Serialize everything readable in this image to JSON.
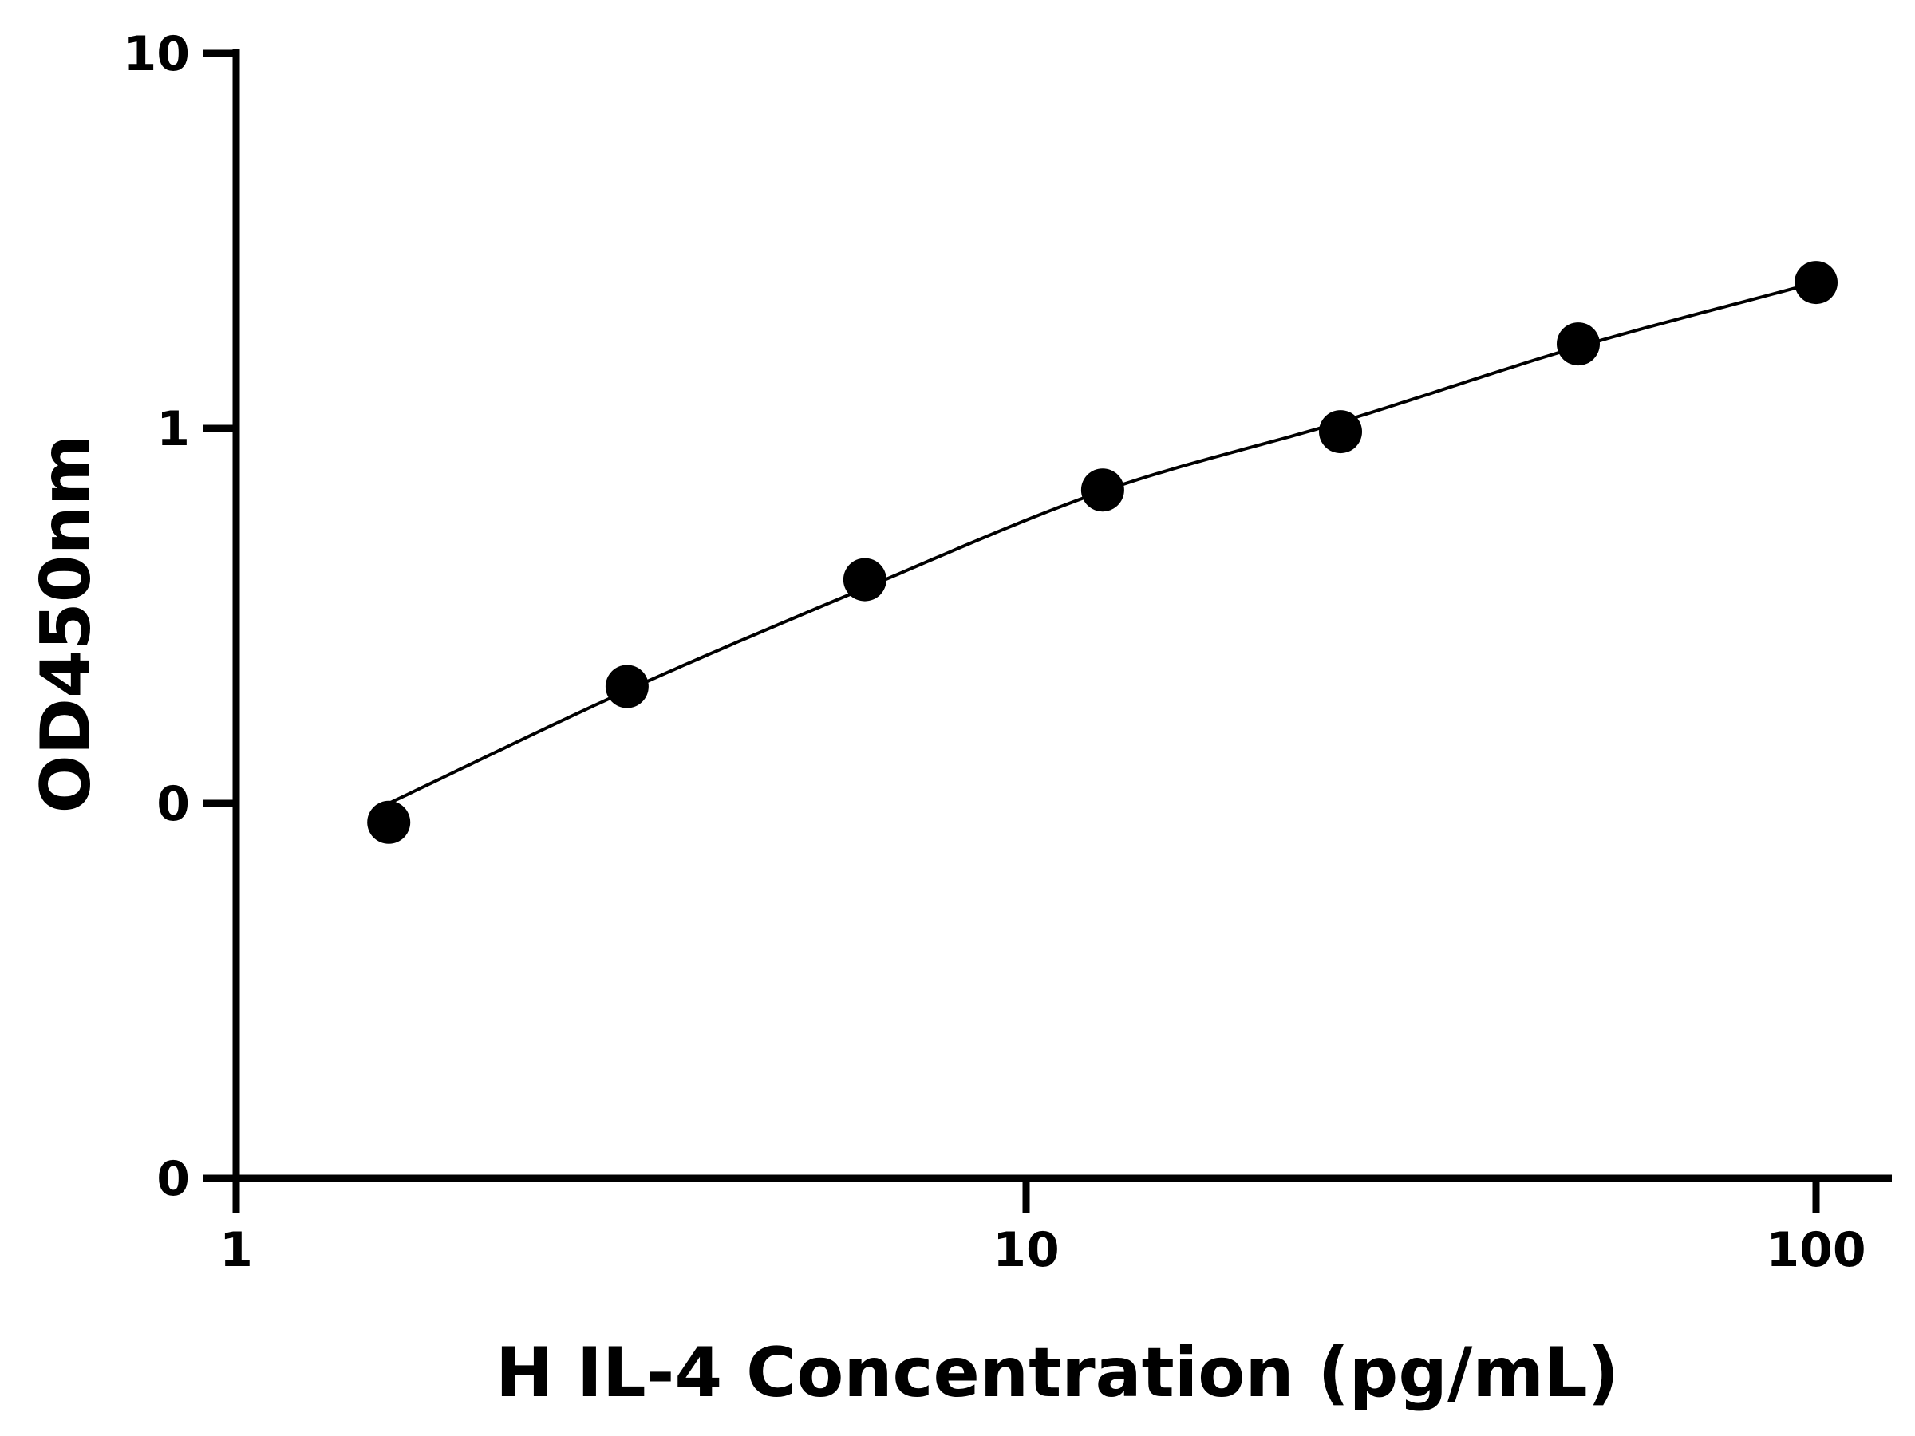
{
  "chart_data": {
    "type": "scatter",
    "title": "",
    "xlabel": "H IL-4 Concentration (pg/mL)",
    "ylabel": "OD450nm",
    "x_scale": "log",
    "y_scale": "log",
    "xlim": [
      1,
      100
    ],
    "xticks": [
      1,
      10,
      100
    ],
    "xtick_labels": [
      "1",
      "10",
      "100"
    ],
    "yticks": [
      0.01,
      0.1,
      1,
      10
    ],
    "ytick_labels": [
      "0",
      "0",
      "1",
      "10"
    ],
    "grid": false,
    "legend": "none",
    "colors": {
      "points": "#000000",
      "line": "#000000",
      "axes": "#000000"
    },
    "series": [
      {
        "x": [
          1.56,
          3.125,
          6.25,
          12.5,
          25,
          50,
          100
        ],
        "y": [
          0.089,
          0.205,
          0.395,
          0.685,
          0.98,
          1.68,
          2.45
        ]
      }
    ],
    "fit_curve": {
      "x": [
        1.56,
        3.125,
        6.25,
        12.5,
        25,
        50,
        100
      ],
      "y": [
        0.1,
        0.2,
        0.375,
        0.68,
        1.04,
        1.65,
        2.45
      ]
    }
  }
}
